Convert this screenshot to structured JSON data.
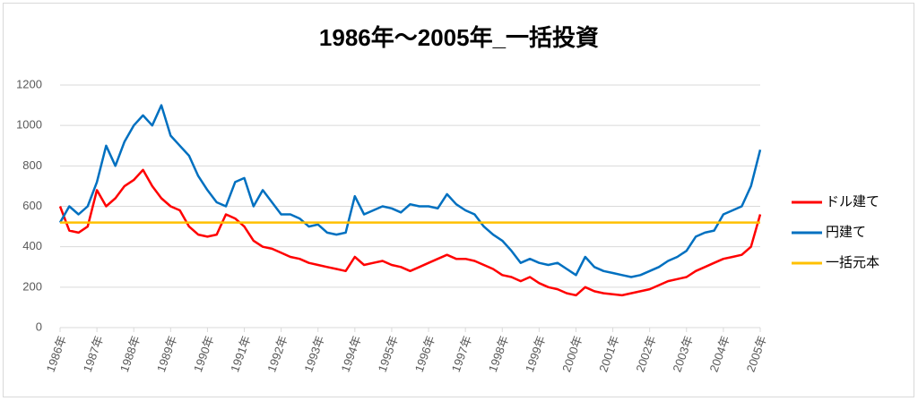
{
  "chart_data": {
    "type": "line",
    "title": "1986年～2005年_一括投資",
    "x": [
      1986,
      1986.25,
      1986.5,
      1986.75,
      1987,
      1987.25,
      1987.5,
      1987.75,
      1988,
      1988.25,
      1988.5,
      1988.75,
      1989,
      1989.25,
      1989.5,
      1989.75,
      1990,
      1990.25,
      1990.5,
      1990.75,
      1991,
      1991.25,
      1991.5,
      1991.75,
      1992,
      1992.25,
      1992.5,
      1992.75,
      1993,
      1993.25,
      1993.5,
      1993.75,
      1994,
      1994.25,
      1994.5,
      1994.75,
      1995,
      1995.25,
      1995.5,
      1995.75,
      1996,
      1996.25,
      1996.5,
      1996.75,
      1997,
      1997.25,
      1997.5,
      1997.75,
      1998,
      1998.25,
      1998.5,
      1998.75,
      1999,
      1999.25,
      1999.5,
      1999.75,
      2000,
      2000.25,
      2000.5,
      2000.75,
      2001,
      2001.25,
      2001.5,
      2001.75,
      2002,
      2002.25,
      2002.5,
      2002.75,
      2003,
      2003.25,
      2003.5,
      2003.75,
      2004,
      2004.25,
      2004.5,
      2004.75,
      2005
    ],
    "series": [
      {
        "name": "ドル建て",
        "color": "#ff0000",
        "values": [
          600,
          480,
          470,
          500,
          680,
          600,
          640,
          700,
          730,
          780,
          700,
          640,
          600,
          580,
          500,
          460,
          450,
          460,
          560,
          540,
          500,
          430,
          400,
          390,
          370,
          350,
          340,
          320,
          310,
          300,
          290,
          280,
          350,
          310,
          320,
          330,
          310,
          300,
          280,
          300,
          320,
          340,
          360,
          340,
          340,
          330,
          310,
          290,
          260,
          250,
          230,
          250,
          220,
          200,
          190,
          170,
          160,
          200,
          180,
          170,
          165,
          160,
          170,
          180,
          190,
          210,
          230,
          240,
          250,
          280,
          300,
          320,
          340,
          350,
          360,
          400,
          560
        ]
      },
      {
        "name": "円建て",
        "color": "#0070c0",
        "values": [
          520,
          600,
          560,
          600,
          720,
          900,
          800,
          920,
          1000,
          1050,
          1000,
          1100,
          950,
          900,
          850,
          750,
          680,
          620,
          600,
          720,
          740,
          600,
          680,
          620,
          560,
          560,
          540,
          500,
          510,
          470,
          460,
          470,
          650,
          560,
          580,
          600,
          590,
          570,
          610,
          600,
          600,
          590,
          660,
          610,
          580,
          560,
          500,
          460,
          430,
          380,
          320,
          340,
          320,
          310,
          320,
          290,
          260,
          350,
          300,
          280,
          270,
          260,
          250,
          260,
          280,
          300,
          330,
          350,
          380,
          450,
          470,
          480,
          560,
          580,
          600,
          700,
          880
        ]
      },
      {
        "name": "一括元本",
        "color": "#ffc000",
        "values": [
          520,
          520,
          520,
          520,
          520,
          520,
          520,
          520,
          520,
          520,
          520,
          520,
          520,
          520,
          520,
          520,
          520,
          520,
          520,
          520,
          520,
          520,
          520,
          520,
          520,
          520,
          520,
          520,
          520,
          520,
          520,
          520,
          520,
          520,
          520,
          520,
          520,
          520,
          520,
          520,
          520,
          520,
          520,
          520,
          520,
          520,
          520,
          520,
          520,
          520,
          520,
          520,
          520,
          520,
          520,
          520,
          520,
          520,
          520,
          520,
          520,
          520,
          520,
          520,
          520,
          520,
          520,
          520,
          520,
          520,
          520,
          520,
          520,
          520,
          520,
          520,
          520
        ]
      }
    ],
    "xlim": [
      1986,
      2005
    ],
    "xticks": [
      {
        "value": 1986,
        "label": "1986年"
      },
      {
        "value": 1987,
        "label": "1987年"
      },
      {
        "value": 1988,
        "label": "1988年"
      },
      {
        "value": 1989,
        "label": "1989年"
      },
      {
        "value": 1990,
        "label": "1990年"
      },
      {
        "value": 1991,
        "label": "1991年"
      },
      {
        "value": 1992,
        "label": "1992年"
      },
      {
        "value": 1993,
        "label": "1993年"
      },
      {
        "value": 1994,
        "label": "1994年"
      },
      {
        "value": 1995,
        "label": "1995年"
      },
      {
        "value": 1996,
        "label": "1996年"
      },
      {
        "value": 1997,
        "label": "1997年"
      },
      {
        "value": 1998,
        "label": "1998年"
      },
      {
        "value": 1999,
        "label": "1999年"
      },
      {
        "value": 2000,
        "label": "2000年"
      },
      {
        "value": 2001,
        "label": "2001年"
      },
      {
        "value": 2002,
        "label": "2002年"
      },
      {
        "value": 2003,
        "label": "2003年"
      },
      {
        "value": 2004,
        "label": "2004年"
      },
      {
        "value": 2005,
        "label": "2005年"
      }
    ],
    "ylim": [
      0,
      1200
    ],
    "yticks": [
      0,
      200,
      400,
      600,
      800,
      1000,
      1200
    ],
    "grid": true,
    "legend": "right"
  }
}
